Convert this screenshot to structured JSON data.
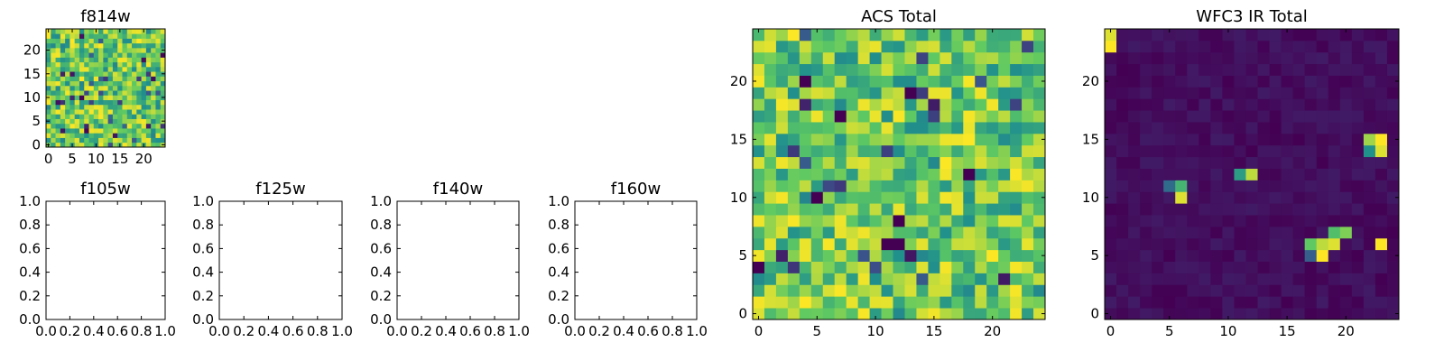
{
  "figure": {
    "colormap": "viridis",
    "colormap_stops": [
      "#440154",
      "#3b528b",
      "#21918c",
      "#5ec962",
      "#fde725"
    ]
  },
  "chart_data": [
    {
      "type": "heatmap",
      "title": "f814w",
      "xlabel": "",
      "ylabel": "",
      "grid_size": [
        25,
        25
      ],
      "xlim": [
        -0.5,
        24.5
      ],
      "ylim": [
        -0.5,
        24.5
      ],
      "x_ticks": [
        0,
        5,
        10,
        15,
        20
      ],
      "y_ticks": [
        0,
        5,
        10,
        15,
        20
      ],
      "x_tick_labels": [
        "0",
        "5",
        "10",
        "15",
        "20"
      ],
      "y_tick_labels": [
        "0",
        "5",
        "10",
        "15",
        "20"
      ],
      "pattern": "noise",
      "value_range": [
        0,
        1
      ],
      "seed": 814
    },
    {
      "type": "heatmap",
      "title": "f105w",
      "empty": true,
      "xlim": [
        0,
        1
      ],
      "ylim": [
        0,
        1
      ],
      "x_ticks": [
        0,
        0.2,
        0.4,
        0.6,
        0.8,
        1.0
      ],
      "y_ticks": [
        0,
        0.2,
        0.4,
        0.6,
        0.8,
        1.0
      ],
      "x_tick_labels": [
        "0.0",
        "0.2",
        "0.4",
        "0.6",
        "0.8",
        "1.0"
      ],
      "y_tick_labels": [
        "0.0",
        "0.2",
        "0.4",
        "0.6",
        "0.8",
        "1.0"
      ]
    },
    {
      "type": "heatmap",
      "title": "f125w",
      "empty": true,
      "xlim": [
        0,
        1
      ],
      "ylim": [
        0,
        1
      ],
      "x_ticks": [
        0,
        0.2,
        0.4,
        0.6,
        0.8,
        1.0
      ],
      "y_ticks": [
        0,
        0.2,
        0.4,
        0.6,
        0.8,
        1.0
      ],
      "x_tick_labels": [
        "0.0",
        "0.2",
        "0.4",
        "0.6",
        "0.8",
        "1.0"
      ],
      "y_tick_labels": [
        "0.0",
        "0.2",
        "0.4",
        "0.6",
        "0.8",
        "1.0"
      ]
    },
    {
      "type": "heatmap",
      "title": "f140w",
      "empty": true,
      "xlim": [
        0,
        1
      ],
      "ylim": [
        0,
        1
      ],
      "x_ticks": [
        0,
        0.2,
        0.4,
        0.6,
        0.8,
        1.0
      ],
      "y_ticks": [
        0,
        0.2,
        0.4,
        0.6,
        0.8,
        1.0
      ],
      "x_tick_labels": [
        "0.0",
        "0.2",
        "0.4",
        "0.6",
        "0.8",
        "1.0"
      ],
      "y_tick_labels": [
        "0.0",
        "0.2",
        "0.4",
        "0.6",
        "0.8",
        "1.0"
      ]
    },
    {
      "type": "heatmap",
      "title": "f160w",
      "empty": true,
      "xlim": [
        0,
        1
      ],
      "ylim": [
        0,
        1
      ],
      "x_ticks": [
        0,
        0.2,
        0.4,
        0.6,
        0.8,
        1.0
      ],
      "y_ticks": [
        0,
        0.2,
        0.4,
        0.6,
        0.8,
        1.0
      ],
      "x_tick_labels": [
        "0.0",
        "0.2",
        "0.4",
        "0.6",
        "0.8",
        "1.0"
      ],
      "y_tick_labels": [
        "0.0",
        "0.2",
        "0.4",
        "0.6",
        "0.8",
        "1.0"
      ]
    },
    {
      "type": "heatmap",
      "title": "ACS Total",
      "xlabel": "",
      "ylabel": "",
      "grid_size": [
        25,
        25
      ],
      "xlim": [
        -0.5,
        24.5
      ],
      "ylim": [
        -0.5,
        24.5
      ],
      "x_ticks": [
        0,
        5,
        10,
        15,
        20
      ],
      "y_ticks": [
        0,
        5,
        10,
        15,
        20
      ],
      "x_tick_labels": [
        "0",
        "5",
        "10",
        "15",
        "20"
      ],
      "y_tick_labels": [
        "0",
        "5",
        "10",
        "15",
        "20"
      ],
      "pattern": "noise",
      "value_range": [
        0,
        1
      ],
      "seed": 4242,
      "notable_cells": [
        {
          "x": 5,
          "y": 10,
          "value": 0.0
        },
        {
          "x": 4,
          "y": 20,
          "value": 0.0
        },
        {
          "x": 7,
          "y": 17,
          "value": 0.0
        },
        {
          "x": 11,
          "y": 6,
          "value": 0.0
        },
        {
          "x": 12,
          "y": 6,
          "value": 0.0
        },
        {
          "x": 12,
          "y": 8,
          "value": 0.0
        },
        {
          "x": 18,
          "y": 12,
          "value": 0.0
        },
        {
          "x": 0,
          "y": 4,
          "value": 0.0
        },
        {
          "x": 13,
          "y": 19,
          "value": 0.0
        }
      ]
    },
    {
      "type": "heatmap",
      "title": "WFC3 IR Total",
      "xlabel": "",
      "ylabel": "",
      "grid_size": [
        25,
        25
      ],
      "xlim": [
        -0.5,
        24.5
      ],
      "ylim": [
        -0.5,
        24.5
      ],
      "x_ticks": [
        0,
        5,
        10,
        15,
        20
      ],
      "y_ticks": [
        0,
        5,
        10,
        15,
        20
      ],
      "x_tick_labels": [
        "0",
        "5",
        "10",
        "15",
        "20"
      ],
      "y_tick_labels": [
        "0",
        "5",
        "10",
        "15",
        "20"
      ],
      "pattern": "sparse-sources",
      "background_range": [
        0.0,
        0.08
      ],
      "seed": 3141,
      "sources": [
        {
          "x": 0,
          "y": 23,
          "value": 1.0
        },
        {
          "x": 0,
          "y": 24,
          "value": 0.95
        },
        {
          "x": 6,
          "y": 11,
          "value": 0.65
        },
        {
          "x": 6,
          "y": 10,
          "value": 0.95
        },
        {
          "x": 5,
          "y": 11,
          "value": 0.35
        },
        {
          "x": 11,
          "y": 12,
          "value": 0.55
        },
        {
          "x": 12,
          "y": 12,
          "value": 0.9
        },
        {
          "x": 22,
          "y": 15,
          "value": 0.85
        },
        {
          "x": 23,
          "y": 15,
          "value": 1.0
        },
        {
          "x": 23,
          "y": 14,
          "value": 0.95
        },
        {
          "x": 22,
          "y": 14,
          "value": 0.5
        },
        {
          "x": 17,
          "y": 6,
          "value": 0.75
        },
        {
          "x": 18,
          "y": 6,
          "value": 0.9
        },
        {
          "x": 18,
          "y": 5,
          "value": 1.0
        },
        {
          "x": 19,
          "y": 6,
          "value": 0.95
        },
        {
          "x": 19,
          "y": 7,
          "value": 0.7
        },
        {
          "x": 20,
          "y": 7,
          "value": 0.8
        },
        {
          "x": 17,
          "y": 5,
          "value": 0.3
        },
        {
          "x": 23,
          "y": 6,
          "value": 1.0
        }
      ]
    }
  ]
}
